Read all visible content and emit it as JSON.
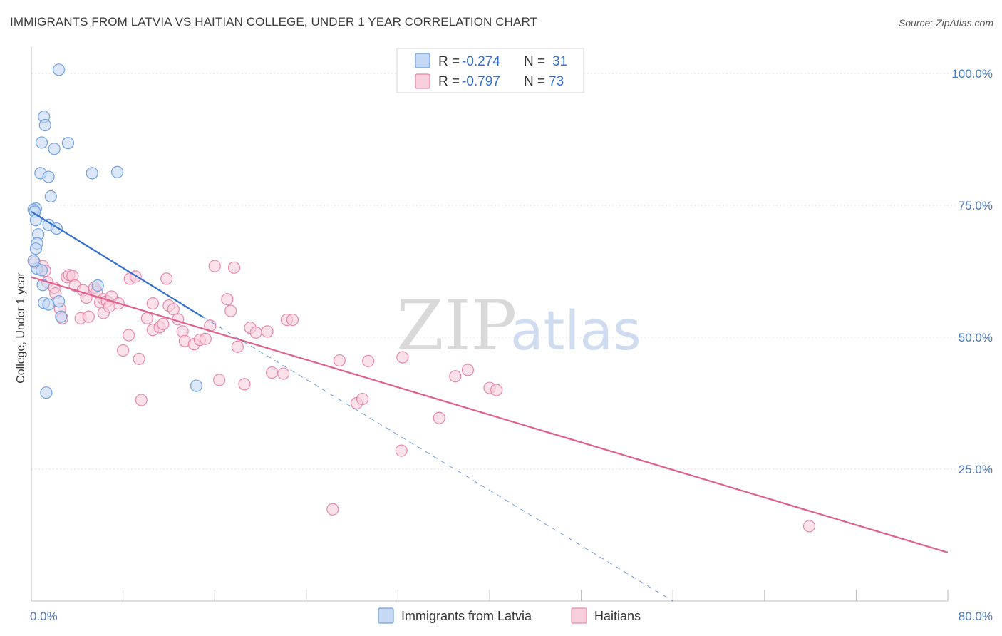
{
  "title": "IMMIGRANTS FROM LATVIA VS HAITIAN COLLEGE, UNDER 1 YEAR CORRELATION CHART",
  "source": "Source: ZipAtlas.com",
  "watermark": {
    "zip": "ZIP",
    "atlas": "atlas"
  },
  "colors": {
    "series1": "#6fa0e0",
    "series1_fill": "#c5d9f5",
    "series1_line": "#2f6fd0",
    "series2": "#e888a8",
    "series2_fill": "#f8cfdc",
    "series2_line": "#e0608a",
    "axis_text": "#4a78c0",
    "grid": "#dcdcdc"
  },
  "legend": {
    "row1": {
      "r_label": "R = ",
      "r_value": "-0.274",
      "n_label": "N = ",
      "n_value": "31"
    },
    "row2": {
      "r_label": "R = ",
      "r_value": "-0.797",
      "n_label": "N = ",
      "n_value": "73"
    }
  },
  "chart_data": {
    "type": "scatter",
    "title": "IMMIGRANTS FROM LATVIA VS HAITIAN COLLEGE, UNDER 1 YEAR CORRELATION CHART",
    "xlabel": "",
    "ylabel": "College, Under 1 year",
    "xlim": [
      0,
      80
    ],
    "ylim": [
      0,
      105
    ],
    "x_tick_labels": [
      "0.0%",
      "80.0%"
    ],
    "y_ticks": [
      25,
      50,
      75,
      100
    ],
    "y_tick_labels": [
      "25.0%",
      "50.0%",
      "75.0%",
      "100.0%"
    ],
    "grid": true,
    "legend_position": "top-center",
    "series": [
      {
        "name": "Immigrants from Latvia",
        "color": "#6fa0e0",
        "R": -0.274,
        "N": 31,
        "points": [
          [
            2.4,
            100.7
          ],
          [
            1.1,
            91.8
          ],
          [
            1.2,
            90.2
          ],
          [
            0.9,
            86.9
          ],
          [
            3.2,
            86.8
          ],
          [
            2.0,
            85.7
          ],
          [
            0.8,
            81.1
          ],
          [
            1.5,
            80.4
          ],
          [
            5.3,
            81.1
          ],
          [
            7.5,
            81.3
          ],
          [
            1.7,
            76.7
          ],
          [
            0.4,
            74.4
          ],
          [
            0.2,
            74.2
          ],
          [
            0.3,
            73.8
          ],
          [
            0.4,
            72.2
          ],
          [
            1.5,
            71.3
          ],
          [
            2.2,
            70.6
          ],
          [
            0.6,
            69.5
          ],
          [
            0.5,
            67.8
          ],
          [
            0.4,
            66.8
          ],
          [
            0.5,
            63.0
          ],
          [
            0.9,
            62.7
          ],
          [
            1.0,
            59.9
          ],
          [
            5.8,
            59.8
          ],
          [
            1.1,
            56.5
          ],
          [
            1.5,
            56.2
          ],
          [
            2.4,
            56.8
          ],
          [
            2.6,
            53.9
          ],
          [
            14.4,
            40.8
          ],
          [
            1.3,
            39.5
          ],
          [
            0.2,
            64.5
          ]
        ],
        "trend": {
          "x1": 0,
          "y1": 73.8,
          "x2": 15,
          "y2": 53.8
        },
        "trend_extension": {
          "x1": 15,
          "y1": 53.8,
          "x2": 56,
          "y2": 0
        }
      },
      {
        "name": "Haitians",
        "color": "#e888a8",
        "R": -0.797,
        "N": 73,
        "points": [
          [
            0.3,
            64.2
          ],
          [
            1.0,
            63.5
          ],
          [
            1.2,
            62.6
          ],
          [
            1.4,
            60.4
          ],
          [
            2.0,
            59.4
          ],
          [
            2.1,
            58.3
          ],
          [
            2.5,
            55.4
          ],
          [
            2.7,
            53.6
          ],
          [
            3.1,
            61.4
          ],
          [
            3.3,
            61.8
          ],
          [
            3.6,
            61.6
          ],
          [
            3.8,
            59.8
          ],
          [
            4.5,
            58.9
          ],
          [
            4.8,
            57.5
          ],
          [
            5.5,
            59.4
          ],
          [
            5.7,
            58.6
          ],
          [
            6.0,
            56.6
          ],
          [
            6.3,
            57.2
          ],
          [
            6.6,
            56.8
          ],
          [
            7.0,
            57.7
          ],
          [
            7.6,
            56.4
          ],
          [
            4.3,
            53.6
          ],
          [
            5.0,
            53.9
          ],
          [
            6.3,
            54.6
          ],
          [
            6.8,
            55.8
          ],
          [
            8.0,
            47.5
          ],
          [
            8.6,
            61.1
          ],
          [
            9.1,
            61.5
          ],
          [
            8.5,
            50.4
          ],
          [
            9.4,
            45.9
          ],
          [
            9.6,
            38.1
          ],
          [
            10.1,
            53.6
          ],
          [
            10.6,
            51.4
          ],
          [
            10.6,
            56.4
          ],
          [
            11.2,
            51.9
          ],
          [
            11.5,
            52.5
          ],
          [
            11.8,
            61.1
          ],
          [
            12.0,
            56.0
          ],
          [
            12.4,
            55.3
          ],
          [
            12.8,
            53.4
          ],
          [
            13.2,
            51.1
          ],
          [
            13.4,
            49.3
          ],
          [
            14.2,
            48.7
          ],
          [
            14.7,
            49.5
          ],
          [
            15.2,
            49.7
          ],
          [
            15.6,
            52.2
          ],
          [
            16.0,
            63.5
          ],
          [
            16.4,
            41.9
          ],
          [
            17.1,
            57.2
          ],
          [
            17.4,
            55.0
          ],
          [
            17.7,
            63.2
          ],
          [
            18.0,
            48.2
          ],
          [
            18.6,
            41.1
          ],
          [
            19.1,
            51.8
          ],
          [
            19.6,
            50.9
          ],
          [
            20.6,
            51.1
          ],
          [
            21.0,
            43.3
          ],
          [
            22.0,
            43.1
          ],
          [
            22.3,
            53.3
          ],
          [
            22.8,
            53.3
          ],
          [
            26.9,
            45.6
          ],
          [
            28.4,
            37.5
          ],
          [
            28.9,
            38.3
          ],
          [
            29.4,
            45.5
          ],
          [
            32.3,
            28.5
          ],
          [
            32.4,
            46.2
          ],
          [
            35.6,
            34.7
          ],
          [
            37.0,
            42.6
          ],
          [
            38.1,
            43.8
          ],
          [
            40.0,
            40.4
          ],
          [
            40.6,
            40.0
          ],
          [
            26.3,
            17.4
          ],
          [
            67.9,
            14.2
          ]
        ],
        "trend": {
          "x1": 0,
          "y1": 61.4,
          "x2": 80,
          "y2": 9.2
        }
      }
    ]
  },
  "bottom_legend": {
    "item1": "Immigrants from Latvia",
    "item2": "Haitians"
  }
}
